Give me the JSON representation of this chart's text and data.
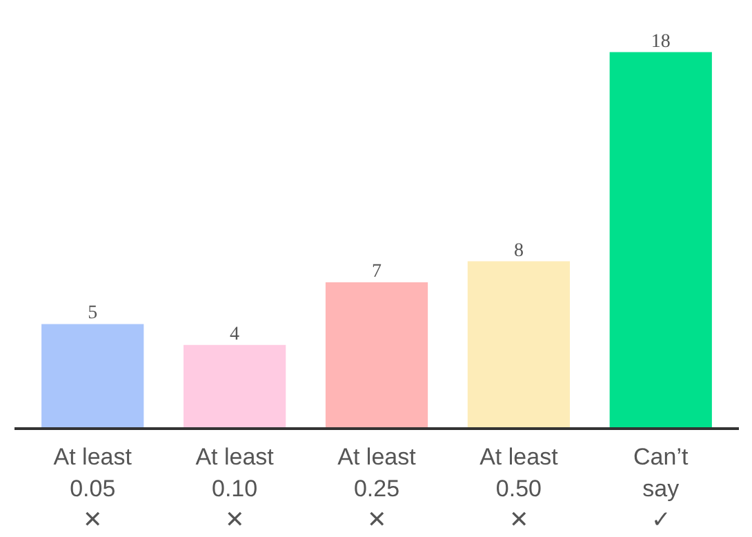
{
  "chart_data": {
    "type": "bar",
    "categories": [
      "At least\n0.05\n✕",
      "At least\n0.10\n✕",
      "At least\n0.25\n✕",
      "At least\n0.50\n✕",
      "Can’t\nsay\n✓"
    ],
    "values": [
      5,
      4,
      7,
      8,
      18
    ],
    "colors": [
      "#a9c5fb",
      "#ffcbe2",
      "#ffb5b5",
      "#fdecb8",
      "#00e08c"
    ],
    "data_labels": true,
    "grid": false
  }
}
